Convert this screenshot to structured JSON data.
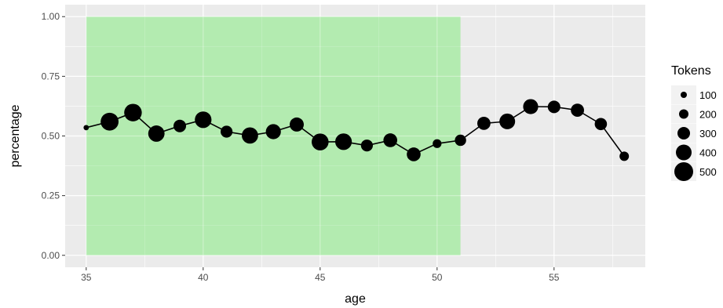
{
  "chart_data": {
    "type": "scatter",
    "xlabel": "age",
    "ylabel": "percentage",
    "xlim": [
      34.1,
      58.9
    ],
    "ylim": [
      -0.05,
      1.05
    ],
    "x_ticks": [
      35,
      40,
      45,
      50,
      55
    ],
    "y_ticks": [
      0.0,
      0.25,
      0.5,
      0.75,
      1.0
    ],
    "x_tick_labels": [
      "35",
      "40",
      "45",
      "50",
      "55"
    ],
    "y_tick_labels": [
      "0.00",
      "0.25",
      "0.50",
      "0.75",
      "1.00"
    ],
    "grid": true,
    "shaded_region": {
      "x": [
        35,
        51
      ],
      "y": [
        0,
        1
      ],
      "color": "#b3ebb0"
    },
    "series": [
      {
        "x": [
          35,
          36,
          37,
          38,
          39,
          40,
          41,
          42,
          43,
          44,
          45,
          46,
          47,
          48,
          49,
          50,
          51,
          52,
          53,
          54,
          55,
          56,
          57,
          58
        ],
        "y": [
          0.535,
          0.56,
          0.598,
          0.51,
          0.542,
          0.568,
          0.518,
          0.502,
          0.518,
          0.548,
          0.475,
          0.476,
          0.46,
          0.482,
          0.423,
          0.468,
          0.482,
          0.553,
          0.561,
          0.623,
          0.622,
          0.608,
          0.55,
          0.415
        ],
        "tokens": [
          70,
          470,
          460,
          420,
          300,
          430,
          280,
          420,
          380,
          350,
          440,
          430,
          280,
          340,
          340,
          180,
          260,
          320,
          400,
          380,
          300,
          320,
          290,
          200
        ]
      }
    ],
    "legend": {
      "title": "Tokens",
      "position": "right",
      "entries": [
        {
          "label": "100",
          "value": 100
        },
        {
          "label": "200",
          "value": 200
        },
        {
          "label": "300",
          "value": 300
        },
        {
          "label": "400",
          "value": 400
        },
        {
          "label": "500",
          "value": 500
        }
      ]
    },
    "colors": {
      "panel": "#ebebeb",
      "grid": "#ffffff",
      "shade": "#b3ebb0",
      "line": "#000000",
      "points": "#000000"
    }
  }
}
